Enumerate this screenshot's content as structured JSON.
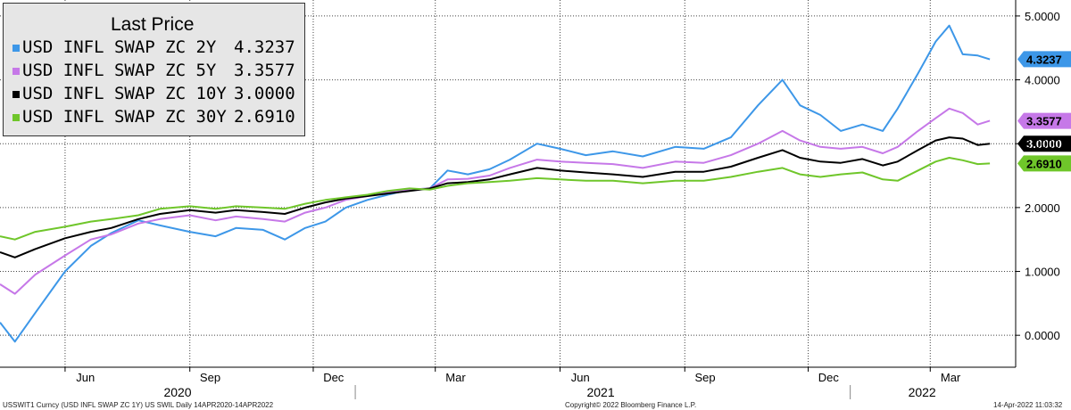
{
  "chart_data": {
    "type": "line",
    "legend_title": "Last Price",
    "legend_placement": "top-left",
    "ylim": [
      -0.5,
      5.25
    ],
    "y_ticks": [
      "0.0000",
      "1.0000",
      "2.0000",
      "3.0000",
      "4.0000",
      "5.0000"
    ],
    "x_ticks": [
      "Jun",
      "Sep",
      "Dec",
      "Mar",
      "Jun",
      "Sep",
      "Dec",
      "Mar"
    ],
    "x_years": [
      "2020",
      "2021",
      "2022"
    ],
    "grid": true,
    "series": [
      {
        "name": "USD INFL SWAP ZC 2Y",
        "last": "4.3237",
        "color": "#3d97e8",
        "points": [
          [
            "2020-04-14",
            0.2
          ],
          [
            "2020-04-25",
            -0.1
          ],
          [
            "2020-05-10",
            0.35
          ],
          [
            "2020-06-01",
            1.0
          ],
          [
            "2020-06-20",
            1.4
          ],
          [
            "2020-07-05",
            1.6
          ],
          [
            "2020-07-25",
            1.8
          ],
          [
            "2020-08-10",
            1.72
          ],
          [
            "2020-09-01",
            1.62
          ],
          [
            "2020-09-20",
            1.55
          ],
          [
            "2020-10-05",
            1.68
          ],
          [
            "2020-10-25",
            1.65
          ],
          [
            "2020-11-10",
            1.5
          ],
          [
            "2020-11-25",
            1.68
          ],
          [
            "2020-12-10",
            1.78
          ],
          [
            "2020-12-25",
            2.0
          ],
          [
            "2021-01-10",
            2.12
          ],
          [
            "2021-01-25",
            2.2
          ],
          [
            "2021-02-10",
            2.28
          ],
          [
            "2021-02-25",
            2.3
          ],
          [
            "2021-03-10",
            2.58
          ],
          [
            "2021-03-25",
            2.52
          ],
          [
            "2021-04-10",
            2.6
          ],
          [
            "2021-04-25",
            2.75
          ],
          [
            "2021-05-15",
            3.0
          ],
          [
            "2021-06-01",
            2.92
          ],
          [
            "2021-06-20",
            2.82
          ],
          [
            "2021-07-10",
            2.88
          ],
          [
            "2021-08-01",
            2.8
          ],
          [
            "2021-08-25",
            2.95
          ],
          [
            "2021-09-15",
            2.92
          ],
          [
            "2021-10-05",
            3.1
          ],
          [
            "2021-10-25",
            3.6
          ],
          [
            "2021-11-12",
            4.0
          ],
          [
            "2021-11-25",
            3.6
          ],
          [
            "2021-12-10",
            3.45
          ],
          [
            "2021-12-25",
            3.2
          ],
          [
            "2022-01-10",
            3.3
          ],
          [
            "2022-01-25",
            3.2
          ],
          [
            "2022-02-05",
            3.55
          ],
          [
            "2022-02-20",
            4.1
          ],
          [
            "2022-03-05",
            4.6
          ],
          [
            "2022-03-15",
            4.85
          ],
          [
            "2022-03-25",
            4.4
          ],
          [
            "2022-04-05",
            4.38
          ],
          [
            "2022-04-14",
            4.32
          ]
        ]
      },
      {
        "name": "USD INFL SWAP ZC 5Y",
        "last": "3.3577",
        "color": "#c678e8",
        "points": [
          [
            "2020-04-14",
            0.8
          ],
          [
            "2020-04-25",
            0.65
          ],
          [
            "2020-05-10",
            0.95
          ],
          [
            "2020-06-01",
            1.25
          ],
          [
            "2020-06-20",
            1.5
          ],
          [
            "2020-07-05",
            1.58
          ],
          [
            "2020-07-25",
            1.75
          ],
          [
            "2020-08-10",
            1.82
          ],
          [
            "2020-09-01",
            1.88
          ],
          [
            "2020-09-20",
            1.8
          ],
          [
            "2020-10-05",
            1.86
          ],
          [
            "2020-10-25",
            1.82
          ],
          [
            "2020-11-10",
            1.78
          ],
          [
            "2020-11-25",
            1.92
          ],
          [
            "2020-12-10",
            2.0
          ],
          [
            "2020-12-25",
            2.12
          ],
          [
            "2021-01-10",
            2.18
          ],
          [
            "2021-01-25",
            2.24
          ],
          [
            "2021-02-10",
            2.28
          ],
          [
            "2021-02-25",
            2.3
          ],
          [
            "2021-03-10",
            2.44
          ],
          [
            "2021-03-25",
            2.45
          ],
          [
            "2021-04-10",
            2.5
          ],
          [
            "2021-04-25",
            2.62
          ],
          [
            "2021-05-15",
            2.75
          ],
          [
            "2021-06-01",
            2.72
          ],
          [
            "2021-06-20",
            2.7
          ],
          [
            "2021-07-10",
            2.68
          ],
          [
            "2021-08-01",
            2.62
          ],
          [
            "2021-08-25",
            2.72
          ],
          [
            "2021-09-15",
            2.7
          ],
          [
            "2021-10-05",
            2.82
          ],
          [
            "2021-10-25",
            3.0
          ],
          [
            "2021-11-12",
            3.2
          ],
          [
            "2021-11-25",
            3.05
          ],
          [
            "2021-12-10",
            2.95
          ],
          [
            "2021-12-25",
            2.92
          ],
          [
            "2022-01-10",
            2.95
          ],
          [
            "2022-01-25",
            2.85
          ],
          [
            "2022-02-05",
            2.95
          ],
          [
            "2022-02-20",
            3.2
          ],
          [
            "2022-03-05",
            3.4
          ],
          [
            "2022-03-15",
            3.55
          ],
          [
            "2022-03-25",
            3.48
          ],
          [
            "2022-04-05",
            3.3
          ],
          [
            "2022-04-14",
            3.36
          ]
        ]
      },
      {
        "name": "USD INFL SWAP ZC 10Y",
        "last": "3.0000",
        "color": "#000000",
        "points": [
          [
            "2020-04-14",
            1.3
          ],
          [
            "2020-04-25",
            1.22
          ],
          [
            "2020-05-10",
            1.35
          ],
          [
            "2020-06-01",
            1.52
          ],
          [
            "2020-06-20",
            1.62
          ],
          [
            "2020-07-05",
            1.68
          ],
          [
            "2020-07-25",
            1.82
          ],
          [
            "2020-08-10",
            1.9
          ],
          [
            "2020-09-01",
            1.96
          ],
          [
            "2020-09-20",
            1.92
          ],
          [
            "2020-10-05",
            1.96
          ],
          [
            "2020-10-25",
            1.93
          ],
          [
            "2020-11-10",
            1.9
          ],
          [
            "2020-11-25",
            2.0
          ],
          [
            "2020-12-10",
            2.08
          ],
          [
            "2020-12-25",
            2.14
          ],
          [
            "2021-01-10",
            2.18
          ],
          [
            "2021-01-25",
            2.22
          ],
          [
            "2021-02-10",
            2.26
          ],
          [
            "2021-02-25",
            2.3
          ],
          [
            "2021-03-10",
            2.38
          ],
          [
            "2021-03-25",
            2.4
          ],
          [
            "2021-04-10",
            2.44
          ],
          [
            "2021-04-25",
            2.52
          ],
          [
            "2021-05-15",
            2.62
          ],
          [
            "2021-06-01",
            2.58
          ],
          [
            "2021-06-20",
            2.55
          ],
          [
            "2021-07-10",
            2.52
          ],
          [
            "2021-08-01",
            2.48
          ],
          [
            "2021-08-25",
            2.56
          ],
          [
            "2021-09-15",
            2.56
          ],
          [
            "2021-10-05",
            2.64
          ],
          [
            "2021-10-25",
            2.78
          ],
          [
            "2021-11-12",
            2.9
          ],
          [
            "2021-11-25",
            2.78
          ],
          [
            "2021-12-10",
            2.72
          ],
          [
            "2021-12-25",
            2.7
          ],
          [
            "2022-01-10",
            2.76
          ],
          [
            "2022-01-25",
            2.66
          ],
          [
            "2022-02-05",
            2.72
          ],
          [
            "2022-02-20",
            2.9
          ],
          [
            "2022-03-05",
            3.05
          ],
          [
            "2022-03-15",
            3.1
          ],
          [
            "2022-03-25",
            3.08
          ],
          [
            "2022-04-05",
            2.98
          ],
          [
            "2022-04-14",
            3.0
          ]
        ]
      },
      {
        "name": "USD INFL SWAP ZC 30Y",
        "last": "2.6910",
        "color": "#6fc62a",
        "points": [
          [
            "2020-04-14",
            1.55
          ],
          [
            "2020-04-25",
            1.5
          ],
          [
            "2020-05-10",
            1.62
          ],
          [
            "2020-06-01",
            1.7
          ],
          [
            "2020-06-20",
            1.78
          ],
          [
            "2020-07-05",
            1.82
          ],
          [
            "2020-07-25",
            1.88
          ],
          [
            "2020-08-10",
            1.98
          ],
          [
            "2020-09-01",
            2.02
          ],
          [
            "2020-09-20",
            1.98
          ],
          [
            "2020-10-05",
            2.02
          ],
          [
            "2020-10-25",
            2.0
          ],
          [
            "2020-11-10",
            1.98
          ],
          [
            "2020-11-25",
            2.06
          ],
          [
            "2020-12-10",
            2.12
          ],
          [
            "2020-12-25",
            2.16
          ],
          [
            "2021-01-10",
            2.2
          ],
          [
            "2021-01-25",
            2.26
          ],
          [
            "2021-02-10",
            2.3
          ],
          [
            "2021-02-25",
            2.28
          ],
          [
            "2021-03-10",
            2.34
          ],
          [
            "2021-03-25",
            2.38
          ],
          [
            "2021-04-10",
            2.4
          ],
          [
            "2021-04-25",
            2.42
          ],
          [
            "2021-05-15",
            2.46
          ],
          [
            "2021-06-01",
            2.44
          ],
          [
            "2021-06-20",
            2.42
          ],
          [
            "2021-07-10",
            2.42
          ],
          [
            "2021-08-01",
            2.38
          ],
          [
            "2021-08-25",
            2.42
          ],
          [
            "2021-09-15",
            2.42
          ],
          [
            "2021-10-05",
            2.48
          ],
          [
            "2021-10-25",
            2.56
          ],
          [
            "2021-11-12",
            2.62
          ],
          [
            "2021-11-25",
            2.52
          ],
          [
            "2021-12-10",
            2.48
          ],
          [
            "2021-12-25",
            2.52
          ],
          [
            "2022-01-10",
            2.55
          ],
          [
            "2022-01-25",
            2.44
          ],
          [
            "2022-02-05",
            2.42
          ],
          [
            "2022-02-20",
            2.58
          ],
          [
            "2022-03-05",
            2.72
          ],
          [
            "2022-03-15",
            2.78
          ],
          [
            "2022-03-25",
            2.74
          ],
          [
            "2022-04-05",
            2.68
          ],
          [
            "2022-04-14",
            2.69
          ]
        ]
      }
    ]
  },
  "footer": {
    "left": "USSWIT1 Curncy (USD INFL SWAP ZC 1Y) US SWIL  Daily 14APR2020-14APR2022",
    "center": "Copyright© 2022 Bloomberg Finance L.P.",
    "right": "14-Apr-2022 11:03:32"
  }
}
